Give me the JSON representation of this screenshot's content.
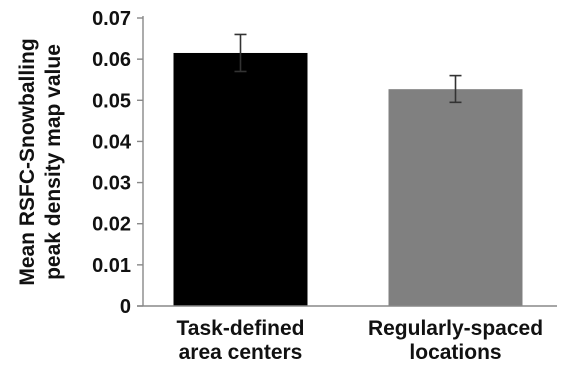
{
  "chart_data": {
    "type": "bar",
    "categories": [
      [
        "Task-defined",
        "area centers"
      ],
      [
        "Regularly-spaced",
        "locations"
      ]
    ],
    "values": [
      0.0615,
      0.0527
    ],
    "errors": [
      [
        0.057,
        0.066
      ],
      [
        0.0495,
        0.056
      ]
    ],
    "colors": [
      "#000000",
      "#808080"
    ],
    "ylabel": [
      "Mean RSFC-Snowballing",
      "peak density map value"
    ],
    "xlabel": "",
    "title": "",
    "ylim": [
      0,
      0.07
    ],
    "yticks": [
      "0",
      "0.01",
      "0.02",
      "0.03",
      "0.04",
      "0.05",
      "0.06",
      "0.07"
    ],
    "grid": false,
    "legend": null
  }
}
